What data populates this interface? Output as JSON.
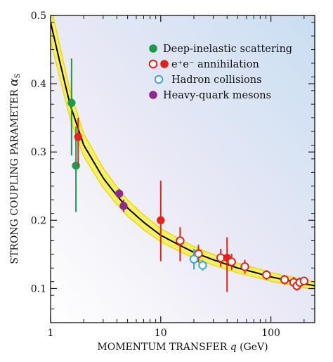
{
  "chart_data": {
    "type": "scatter",
    "xlabel": "MOMENTUM TRANSFER q (GeV)",
    "xlabel_main": "MOMENTUM TRANSFER ",
    "xlabel_var": "q",
    "xlabel_unit": " (GeV)",
    "ylabel": "STRONG COUPLING PARAMETER αS",
    "ylabel_main": "STRONG COUPLING PARAMETER ",
    "ylabel_var": "α",
    "ylabel_sub": "S",
    "x_scale": "log",
    "xlim": [
      1,
      250
    ],
    "ylim": [
      0.05,
      0.5
    ],
    "x_ticks": [
      1,
      10,
      100
    ],
    "x_tick_labels": [
      "1",
      "10",
      "100"
    ],
    "y_ticks": [
      0.1,
      0.2,
      0.3,
      0.4,
      0.5
    ],
    "y_tick_labels": [
      "0.1",
      "0.2",
      "0.3",
      "0.4",
      "0.5"
    ],
    "grid": false,
    "legend_position": "top-right",
    "legend": [
      {
        "label": "Deep-inelastic scattering",
        "fill": "#1a9a4a",
        "stroke": "#1a9a4a",
        "open": false
      },
      {
        "label": "e⁺e⁻ annihilation",
        "fill": "#e2231a",
        "stroke": "#e2231a",
        "open": true
      },
      {
        "label": "Hadron collisions",
        "fill": "#ffffff",
        "stroke": "#36a9e1",
        "open": true
      },
      {
        "label": "Heavy-quark mesons",
        "fill": "#8e2a8e",
        "stroke": "#8e2a8e",
        "open": false
      }
    ],
    "band_color": "#f7f050",
    "band_edge_color": "#e8d400",
    "curve_color": "#000000",
    "curve_points": [
      {
        "x": 1.0,
        "y": 0.49
      },
      {
        "x": 1.2,
        "y": 0.435
      },
      {
        "x": 1.5,
        "y": 0.37
      },
      {
        "x": 2.0,
        "y": 0.31
      },
      {
        "x": 3.0,
        "y": 0.262
      },
      {
        "x": 4.0,
        "y": 0.236
      },
      {
        "x": 5.0,
        "y": 0.218
      },
      {
        "x": 7.0,
        "y": 0.197
      },
      {
        "x": 10.0,
        "y": 0.178
      },
      {
        "x": 15.0,
        "y": 0.163
      },
      {
        "x": 20.0,
        "y": 0.153
      },
      {
        "x": 30.0,
        "y": 0.142
      },
      {
        "x": 50.0,
        "y": 0.13
      },
      {
        "x": 70.0,
        "y": 0.124
      },
      {
        "x": 100.0,
        "y": 0.117
      },
      {
        "x": 150.0,
        "y": 0.111
      },
      {
        "x": 250.0,
        "y": 0.104
      }
    ],
    "series": [
      {
        "name": "Deep-inelastic scattering",
        "color": "#1a9a4a",
        "open": false,
        "points": [
          {
            "x": 1.55,
            "y": 0.372,
            "ylo": 0.295,
            "yhi": 0.437
          },
          {
            "x": 1.7,
            "y": 0.28,
            "ylo": 0.212,
            "yhi": 0.337
          }
        ]
      },
      {
        "name": "e⁺e⁻ annihilation",
        "color": "#e2231a",
        "open": true,
        "points": [
          {
            "x": 1.78,
            "y": 0.322,
            "ylo": 0.28,
            "yhi": 0.35,
            "filled": true
          },
          {
            "x": 10.0,
            "y": 0.2,
            "ylo": 0.14,
            "yhi": 0.258,
            "filled": true
          },
          {
            "x": 15.0,
            "y": 0.17,
            "ylo": 0.14,
            "yhi": 0.19
          },
          {
            "x": 22.0,
            "y": 0.151,
            "ylo": 0.138,
            "yhi": 0.164
          },
          {
            "x": 35.0,
            "y": 0.145,
            "ylo": 0.132,
            "yhi": 0.158
          },
          {
            "x": 40.0,
            "y": 0.145,
            "ylo": 0.095,
            "yhi": 0.175,
            "filled": true
          },
          {
            "x": 44.0,
            "y": 0.139,
            "ylo": 0.127,
            "yhi": 0.151
          },
          {
            "x": 58.0,
            "y": 0.132,
            "ylo": 0.122,
            "yhi": 0.142
          },
          {
            "x": 91.2,
            "y": 0.12,
            "ylo": 0.113,
            "yhi": 0.127
          },
          {
            "x": 133.0,
            "y": 0.113,
            "ylo": 0.106,
            "yhi": 0.12
          },
          {
            "x": 161.0,
            "y": 0.109,
            "ylo": 0.101,
            "yhi": 0.117
          },
          {
            "x": 172.0,
            "y": 0.104,
            "ylo": 0.097,
            "yhi": 0.111
          },
          {
            "x": 183.0,
            "y": 0.109,
            "ylo": 0.102,
            "yhi": 0.116
          },
          {
            "x": 200.0,
            "y": 0.111,
            "ylo": 0.105,
            "yhi": 0.117
          }
        ]
      },
      {
        "name": "Hadron collisions",
        "color": "#36a9e1",
        "open": true,
        "points": [
          {
            "x": 20.0,
            "y": 0.143,
            "ylo": 0.128,
            "yhi": 0.158
          },
          {
            "x": 24.0,
            "y": 0.134,
            "ylo": 0.126,
            "yhi": 0.142
          }
        ]
      },
      {
        "name": "Heavy-quark mesons",
        "color": "#8e2a8e",
        "open": false,
        "points": [
          {
            "x": 4.2,
            "y": 0.239,
            "ylo": 0.232,
            "yhi": 0.246
          },
          {
            "x": 4.6,
            "y": 0.221,
            "ylo": 0.212,
            "yhi": 0.23
          }
        ]
      }
    ]
  }
}
